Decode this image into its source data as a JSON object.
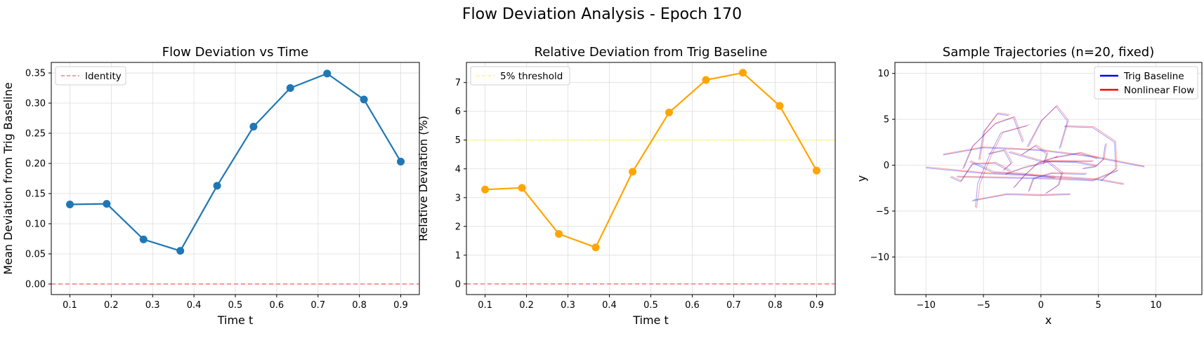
{
  "figure": {
    "suptitle": "Flow Deviation Analysis - Epoch 170"
  },
  "chart_data": [
    {
      "type": "line",
      "title": "Flow Deviation vs Time",
      "xlabel": "Time t",
      "ylabel": "Mean Deviation from Trig Baseline",
      "xlim": [
        0.055,
        0.945
      ],
      "ylim": [
        -0.0175,
        0.3675
      ],
      "xticks": [
        0.1,
        0.2,
        0.3,
        0.4,
        0.5,
        0.6,
        0.7,
        0.8,
        0.9
      ],
      "xtick_labels": [
        "0.1",
        "0.2",
        "0.3",
        "0.4",
        "0.5",
        "0.6",
        "0.7",
        "0.8",
        "0.9"
      ],
      "yticks": [
        0.0,
        0.05,
        0.1,
        0.15,
        0.2,
        0.25,
        0.3,
        0.35
      ],
      "ytick_labels": [
        "0.00",
        "0.05",
        "0.10",
        "0.15",
        "0.20",
        "0.25",
        "0.30",
        "0.35"
      ],
      "grid": true,
      "legend_position": "upper-left",
      "series": [
        {
          "color": "#1f77b4",
          "marker": "circle",
          "x": [
            0.1,
            0.189,
            0.278,
            0.367,
            0.456,
            0.544,
            0.633,
            0.722,
            0.811,
            0.9
          ],
          "y": [
            0.132,
            0.133,
            0.074,
            0.055,
            0.163,
            0.261,
            0.325,
            0.349,
            0.306,
            0.203
          ]
        }
      ],
      "reference_lines": [
        {
          "name": "Identity",
          "orientation": "horizontal",
          "value": 0.0,
          "color": "#ff7f7f",
          "style": "dashed"
        }
      ]
    },
    {
      "type": "line",
      "title": "Relative Deviation from Trig Baseline",
      "xlabel": "Time t",
      "ylabel": "Relative Deviation (%)",
      "xlim": [
        0.055,
        0.945
      ],
      "ylim": [
        -0.37,
        7.7
      ],
      "xticks": [
        0.1,
        0.2,
        0.3,
        0.4,
        0.5,
        0.6,
        0.7,
        0.8,
        0.9
      ],
      "xtick_labels": [
        "0.1",
        "0.2",
        "0.3",
        "0.4",
        "0.5",
        "0.6",
        "0.7",
        "0.8",
        "0.9"
      ],
      "yticks": [
        0,
        1,
        2,
        3,
        4,
        5,
        6,
        7
      ],
      "ytick_labels": [
        "0",
        "1",
        "2",
        "3",
        "4",
        "5",
        "6",
        "7"
      ],
      "grid": true,
      "legend_position": "upper-left",
      "series": [
        {
          "color": "#ffa500",
          "marker": "circle",
          "x": [
            0.1,
            0.189,
            0.278,
            0.367,
            0.456,
            0.544,
            0.633,
            0.722,
            0.811,
            0.9
          ],
          "y": [
            3.28,
            3.34,
            1.74,
            1.27,
            3.9,
            5.96,
            7.09,
            7.34,
            6.19,
            3.94
          ]
        }
      ],
      "reference_lines": [
        {
          "name": "5% threshold",
          "orientation": "horizontal",
          "value": 5,
          "color": "#ffff66",
          "style": "dashed"
        },
        {
          "name": "",
          "orientation": "horizontal",
          "value": 0,
          "color": "#ff7f7f",
          "style": "dashed"
        }
      ]
    },
    {
      "type": "line",
      "title": "Sample Trajectories (n=20, fixed)",
      "xlabel": "x",
      "ylabel": "y",
      "xlim": [
        -12.7,
        14
      ],
      "ylim": [
        -14.1,
        11.2
      ],
      "xticks": [
        -10,
        -5,
        0,
        5,
        10
      ],
      "xtick_labels": [
        "−10",
        "−5",
        "0",
        "5",
        "10"
      ],
      "yticks": [
        -10,
        -5,
        0,
        5,
        10
      ],
      "ytick_labels": [
        "−10",
        "−5",
        "0",
        "5",
        "10"
      ],
      "grid": true,
      "legend_position": "upper-right",
      "legend": [
        {
          "name": "Trig Baseline",
          "color": "#0000ff"
        },
        {
          "name": "Nonlinear Flow",
          "color": "#ff0000"
        }
      ],
      "trajectories": [
        {
          "trig": [
            [
              -10,
              -0.3
            ],
            [
              -5,
              -0.9
            ],
            [
              0,
              -1.2
            ],
            [
              5,
              -1.6
            ],
            [
              7.2,
              -2.1
            ]
          ],
          "flow": [
            [
              -10,
              -0.2
            ],
            [
              -5,
              -0.8
            ],
            [
              0,
              -1.1
            ],
            [
              5,
              -1.5
            ],
            [
              7.2,
              -2.0
            ]
          ]
        },
        {
          "trig": [
            [
              -8.5,
              1.1
            ],
            [
              -5,
              1.9
            ],
            [
              0,
              1.6
            ],
            [
              4.5,
              0.9
            ],
            [
              9,
              -0.2
            ]
          ],
          "flow": [
            [
              -8.5,
              1.2
            ],
            [
              -5,
              2.0
            ],
            [
              0,
              1.7
            ],
            [
              4.5,
              1.0
            ],
            [
              9,
              -0.1
            ]
          ]
        },
        {
          "trig": [
            [
              -7.3,
              -1.3
            ],
            [
              -3,
              -1.4
            ],
            [
              1,
              -1.5
            ],
            [
              4.5,
              -1.7
            ],
            [
              6.7,
              -0.6
            ]
          ],
          "flow": [
            [
              -7.3,
              -1.2
            ],
            [
              -3,
              -1.3
            ],
            [
              1,
              -1.4
            ],
            [
              4.5,
              -1.6
            ],
            [
              6.7,
              -0.5
            ]
          ]
        },
        {
          "trig": [
            [
              -5.7,
              -4.6
            ],
            [
              -5.5,
              -2
            ],
            [
              -4.5,
              1
            ],
            [
              -3.5,
              3.5
            ],
            [
              -1.2,
              4.3
            ]
          ],
          "flow": [
            [
              -5.6,
              -4.7
            ],
            [
              -5.3,
              -2
            ],
            [
              -4.3,
              1.1
            ],
            [
              -3.3,
              3.6
            ],
            [
              -1.0,
              4.4
            ]
          ]
        },
        {
          "trig": [
            [
              -6.8,
              -0.4
            ],
            [
              -6,
              2
            ],
            [
              -4,
              4.5
            ],
            [
              -2.4,
              5.2
            ],
            [
              -1.6,
              2.5
            ]
          ],
          "flow": [
            [
              -6.7,
              -0.3
            ],
            [
              -5.9,
              2.1
            ],
            [
              -3.9,
              4.6
            ],
            [
              -2.3,
              5.3
            ],
            [
              -1.5,
              2.6
            ]
          ]
        },
        {
          "trig": [
            [
              -5.4,
              0.6
            ],
            [
              -5.0,
              3.6
            ],
            [
              -3.8,
              5.6
            ],
            [
              -2.8,
              5.4
            ]
          ],
          "flow": [
            [
              -5.3,
              0.6
            ],
            [
              -4.9,
              3.7
            ],
            [
              -3.7,
              5.7
            ],
            [
              -2.7,
              5.5
            ]
          ]
        },
        {
          "trig": [
            [
              -1.2,
              2.0
            ],
            [
              0,
              4.8
            ],
            [
              1.3,
              6.4
            ],
            [
              2.3,
              4.8
            ],
            [
              1.6,
              1.8
            ]
          ],
          "flow": [
            [
              -1.1,
              2.0
            ],
            [
              0.1,
              4.9
            ],
            [
              1.4,
              6.5
            ],
            [
              2.4,
              4.9
            ],
            [
              1.7,
              1.9
            ]
          ]
        },
        {
          "trig": [
            [
              2.0,
              4.2
            ],
            [
              4.5,
              4.1
            ],
            [
              6.4,
              2.5
            ],
            [
              6.5,
              -0.4
            ],
            [
              5.2,
              -1.7
            ]
          ],
          "flow": [
            [
              2.1,
              4.3
            ],
            [
              4.6,
              4.2
            ],
            [
              6.5,
              2.6
            ],
            [
              6.6,
              -0.3
            ],
            [
              5.3,
              -1.6
            ]
          ]
        },
        {
          "trig": [
            [
              -2.8,
              1.4
            ],
            [
              0,
              0.4
            ],
            [
              3,
              0.3
            ],
            [
              4.8,
              -0.1
            ]
          ],
          "flow": [
            [
              -2.7,
              1.5
            ],
            [
              0.1,
              0.5
            ],
            [
              3.1,
              0.4
            ],
            [
              4.9,
              0
            ]
          ]
        },
        {
          "trig": [
            [
              -6.0,
              -3.9
            ],
            [
              -3,
              -3.2
            ],
            [
              0,
              -3.3
            ],
            [
              2.5,
              -3.2
            ]
          ],
          "flow": [
            [
              -5.9,
              -3.8
            ],
            [
              -2.9,
              -3.1
            ],
            [
              0.1,
              -3.2
            ],
            [
              2.6,
              -3.1
            ]
          ]
        },
        {
          "trig": [
            [
              -3.1,
              -1.0
            ],
            [
              -1.5,
              -0.3
            ],
            [
              0.8,
              0.4
            ],
            [
              2.5,
              0.4
            ],
            [
              4.5,
              0.4
            ]
          ],
          "flow": [
            [
              -3.0,
              -0.9
            ],
            [
              -1.4,
              -0.2
            ],
            [
              0.9,
              0.5
            ],
            [
              2.6,
              0.5
            ],
            [
              4.6,
              0.5
            ]
          ]
        },
        {
          "trig": [
            [
              -2.4,
              -2.5
            ],
            [
              -1.5,
              -1.2
            ],
            [
              -0.3,
              0.2
            ],
            [
              1.4,
              0.9
            ]
          ],
          "flow": [
            [
              -2.3,
              -2.4
            ],
            [
              -1.4,
              -1.1
            ],
            [
              -0.2,
              0.3
            ],
            [
              1.5,
              1.0
            ]
          ]
        },
        {
          "trig": [
            [
              0.4,
              -3.1
            ],
            [
              1.5,
              -2.2
            ],
            [
              1.8,
              -0.9
            ],
            [
              0.4,
              0.5
            ]
          ],
          "flow": [
            [
              0.5,
              -3.0
            ],
            [
              1.6,
              -2.1
            ],
            [
              1.9,
              -0.8
            ],
            [
              0.5,
              0.6
            ]
          ]
        },
        {
          "trig": [
            [
              -4.6,
              1.2
            ],
            [
              -3.2,
              1.6
            ],
            [
              -2.6,
              0.2
            ],
            [
              -3.3,
              -0.6
            ]
          ],
          "flow": [
            [
              -4.5,
              1.3
            ],
            [
              -3.1,
              1.7
            ],
            [
              -2.5,
              0.3
            ],
            [
              -3.2,
              -0.5
            ]
          ]
        },
        {
          "trig": [
            [
              -6.2,
              0.4
            ],
            [
              -4.2,
              -0.8
            ],
            [
              -1.5,
              -1.0
            ],
            [
              1.2,
              -1.4
            ]
          ],
          "flow": [
            [
              -6.1,
              0.5
            ],
            [
              -4.1,
              -0.7
            ],
            [
              -1.4,
              -0.9
            ],
            [
              1.3,
              -1.3
            ]
          ]
        },
        {
          "trig": [
            [
              -2.7,
              -0.7
            ],
            [
              -4.0,
              0.2
            ],
            [
              -6.0,
              0.1
            ],
            [
              -7.0,
              -1.8
            ],
            [
              -7.9,
              -1.3
            ]
          ],
          "flow": [
            [
              -2.6,
              -0.6
            ],
            [
              -3.9,
              0.3
            ],
            [
              -5.9,
              0.2
            ],
            [
              -6.9,
              -1.7
            ],
            [
              -7.8,
              -1.2
            ]
          ]
        },
        {
          "trig": [
            [
              -1.7,
              1.1
            ],
            [
              -0.5,
              2.1
            ],
            [
              0.5,
              1.2
            ],
            [
              0.2,
              0.1
            ]
          ],
          "flow": [
            [
              -1.6,
              1.2
            ],
            [
              -0.4,
              2.2
            ],
            [
              0.6,
              1.3
            ],
            [
              0.3,
              0.2
            ]
          ]
        },
        {
          "trig": [
            [
              5.6,
              2.3
            ],
            [
              5.4,
              0.6
            ],
            [
              4.7,
              -0.2
            ],
            [
              3.6,
              -0.4
            ]
          ],
          "flow": [
            [
              5.7,
              2.4
            ],
            [
              5.5,
              0.7
            ],
            [
              4.8,
              -0.1
            ],
            [
              3.7,
              -0.3
            ]
          ]
        },
        {
          "trig": [
            [
              -1.1,
              -2.9
            ],
            [
              -0.7,
              -1.5
            ],
            [
              0.9,
              -0.9
            ],
            [
              3.9,
              -1.0
            ]
          ],
          "flow": [
            [
              -1.0,
              -2.8
            ],
            [
              -0.6,
              -1.4
            ],
            [
              1.0,
              -0.8
            ],
            [
              4.0,
              -0.9
            ]
          ]
        },
        {
          "trig": [
            [
              1.2,
              0.8
            ],
            [
              3.4,
              1.3
            ],
            [
              4.9,
              0.7
            ]
          ],
          "flow": [
            [
              1.3,
              0.9
            ],
            [
              3.5,
              1.4
            ],
            [
              5.0,
              0.8
            ]
          ]
        }
      ]
    }
  ]
}
